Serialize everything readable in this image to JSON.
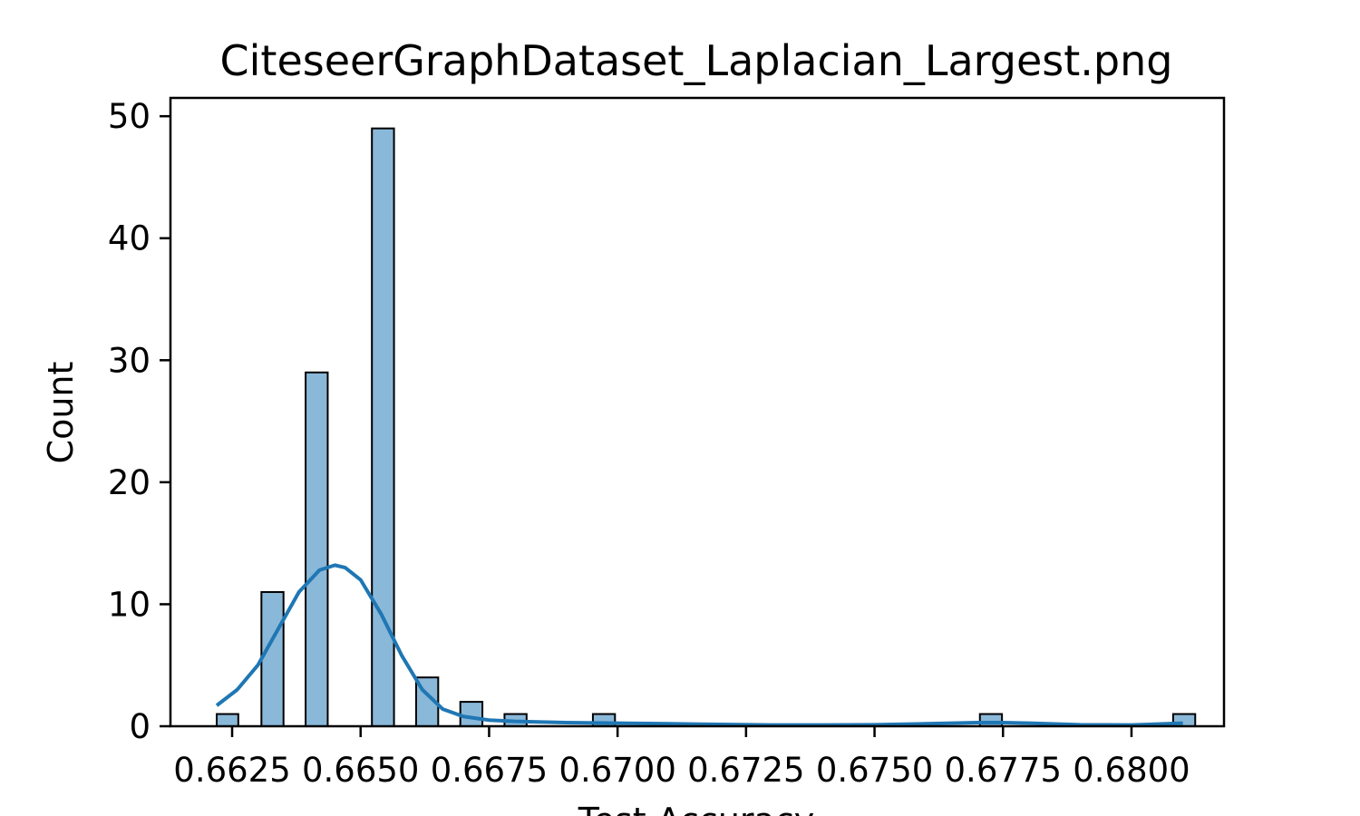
{
  "chart_data": {
    "type": "bar",
    "title": "CiteseerGraphDataset_Laplacian_Largest.png",
    "xlabel": "Test Accuracy",
    "ylabel": "Count",
    "xlim": [
      0.6613,
      0.6818
    ],
    "ylim": [
      0,
      51.5
    ],
    "x_ticks": [
      {
        "value": 0.6625,
        "label": "0.6625"
      },
      {
        "value": 0.665,
        "label": "0.6650"
      },
      {
        "value": 0.6675,
        "label": "0.6675"
      },
      {
        "value": 0.67,
        "label": "0.6700"
      },
      {
        "value": 0.6725,
        "label": "0.6725"
      },
      {
        "value": 0.675,
        "label": "0.6750"
      },
      {
        "value": 0.6775,
        "label": "0.6775"
      },
      {
        "value": 0.68,
        "label": "0.6800"
      }
    ],
    "y_ticks": [
      {
        "value": 0,
        "label": "0"
      },
      {
        "value": 10,
        "label": "10"
      },
      {
        "value": 20,
        "label": "20"
      },
      {
        "value": 30,
        "label": "30"
      },
      {
        "value": 40,
        "label": "40"
      },
      {
        "value": 50,
        "label": "50"
      }
    ],
    "bars": [
      {
        "x0": 0.6622,
        "x1": 0.66262,
        "count": 1
      },
      {
        "x0": 0.66307,
        "x1": 0.6635,
        "count": 11
      },
      {
        "x0": 0.66393,
        "x1": 0.66436,
        "count": 29
      },
      {
        "x0": 0.66522,
        "x1": 0.66565,
        "count": 49
      },
      {
        "x0": 0.66608,
        "x1": 0.66651,
        "count": 4
      },
      {
        "x0": 0.66694,
        "x1": 0.66737,
        "count": 2
      },
      {
        "x0": 0.6678,
        "x1": 0.66823,
        "count": 1
      },
      {
        "x0": 0.66952,
        "x1": 0.66995,
        "count": 1
      },
      {
        "x0": 0.67705,
        "x1": 0.67748,
        "count": 1
      },
      {
        "x0": 0.68081,
        "x1": 0.68124,
        "count": 1
      }
    ],
    "kde": {
      "x": [
        0.6622,
        0.6626,
        0.663,
        0.6634,
        0.6638,
        0.6642,
        0.6645,
        0.6647,
        0.665,
        0.6654,
        0.6658,
        0.6662,
        0.6666,
        0.667,
        0.6675,
        0.668,
        0.669,
        0.67,
        0.671,
        0.672,
        0.673,
        0.674,
        0.675,
        0.676,
        0.677,
        0.6775,
        0.678,
        0.679,
        0.68,
        0.681
      ],
      "y": [
        1.7,
        3.0,
        5.0,
        8.0,
        11.0,
        12.8,
        13.2,
        13.0,
        12.0,
        9.2,
        5.8,
        3.0,
        1.4,
        0.8,
        0.5,
        0.4,
        0.3,
        0.25,
        0.2,
        0.15,
        0.1,
        0.1,
        0.12,
        0.2,
        0.3,
        0.3,
        0.25,
        0.12,
        0.1,
        0.25
      ]
    },
    "grid": false,
    "colors": {
      "bar_fill": "#8ab8d9",
      "bar_edge": "#000000",
      "kde_line": "#1f77b4"
    }
  }
}
